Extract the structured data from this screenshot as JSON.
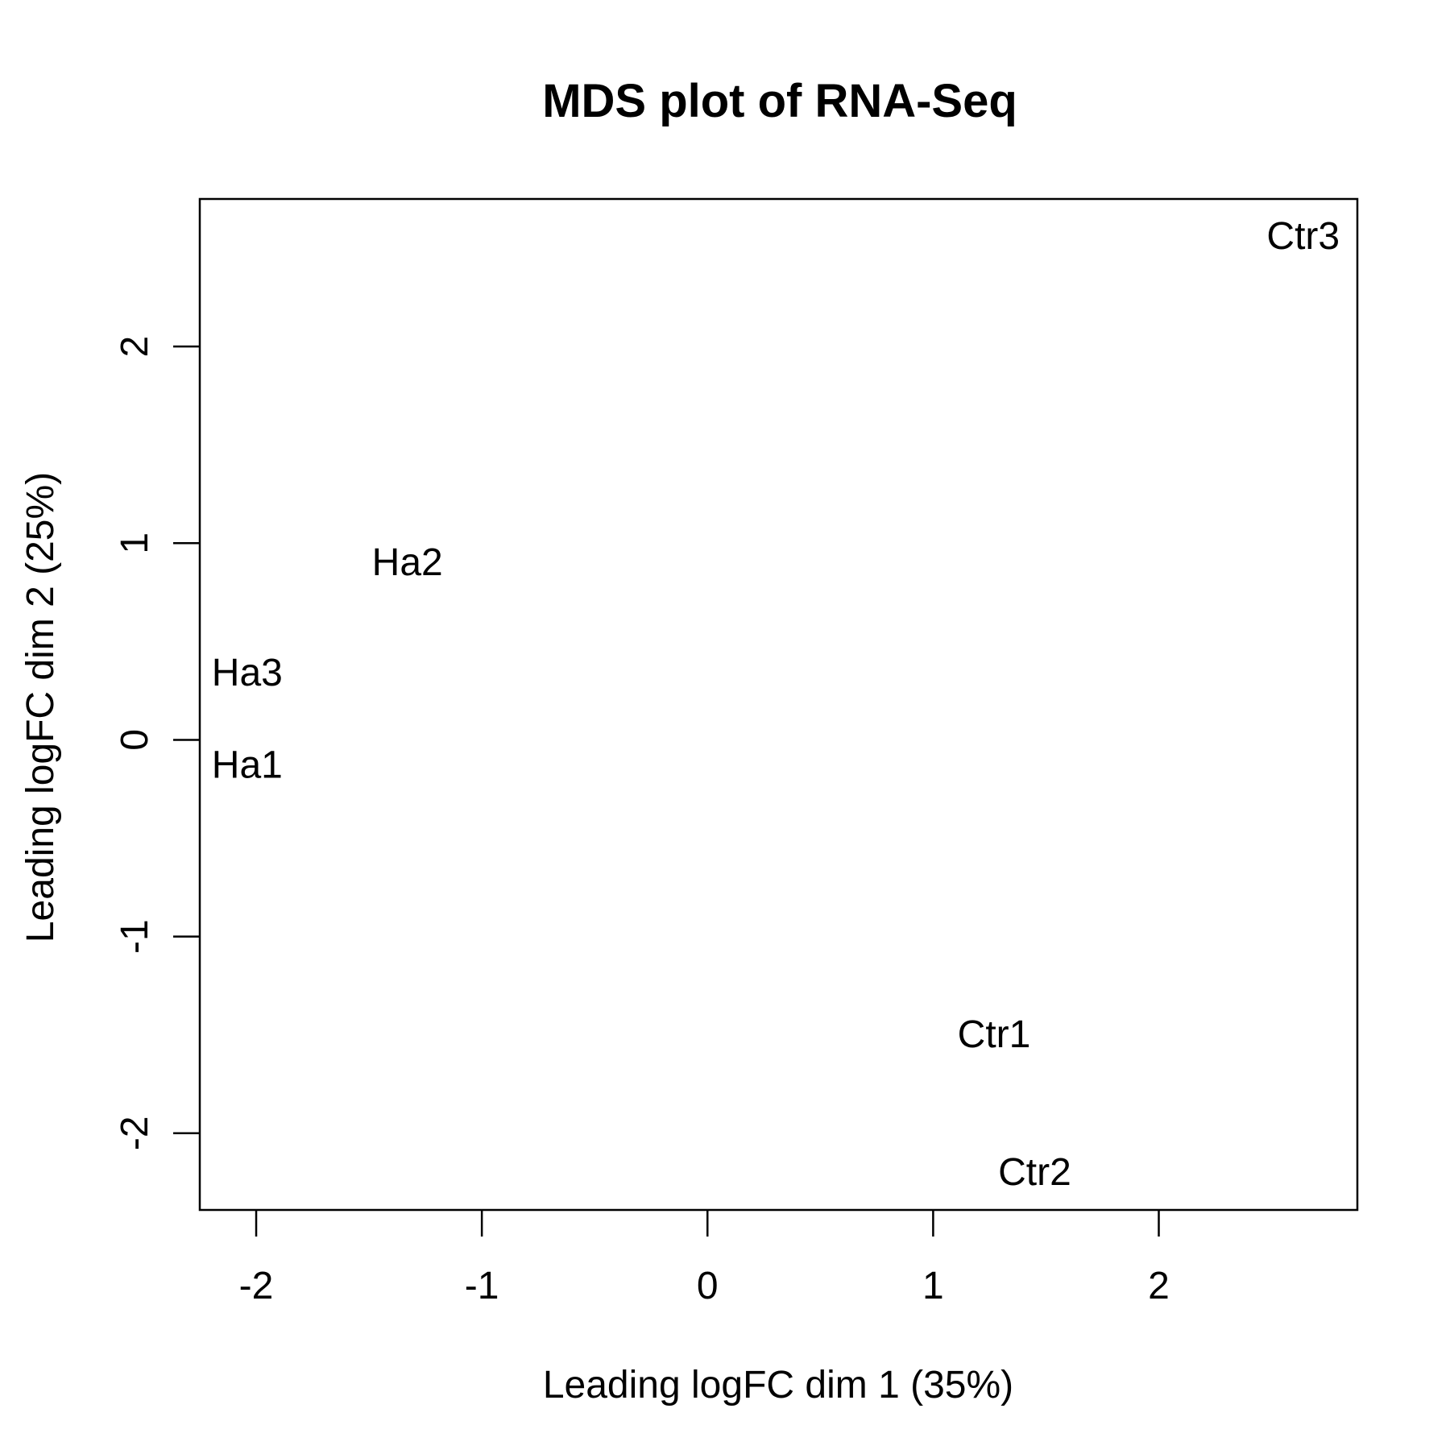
{
  "chart_data": {
    "type": "scatter",
    "title": "MDS plot of RNA-Seq",
    "xlabel": "Leading logFC dim 1 (35%)",
    "ylabel": "Leading logFC dim 2 (25%)",
    "xlim": [
      -2.25,
      2.88
    ],
    "ylim": [
      -2.39,
      2.75
    ],
    "xticks": [
      -2,
      -1,
      0,
      1,
      2
    ],
    "yticks": [
      -2,
      -1,
      0,
      1,
      2
    ],
    "grid": false,
    "points": [
      {
        "label": "Ha1",
        "x": -2.04,
        "y": -0.13
      },
      {
        "label": "Ha2",
        "x": -1.33,
        "y": 0.9
      },
      {
        "label": "Ha3",
        "x": -2.04,
        "y": 0.34
      },
      {
        "label": "Ctr1",
        "x": 1.27,
        "y": -1.5
      },
      {
        "label": "Ctr2",
        "x": 1.45,
        "y": -2.2
      },
      {
        "label": "Ctr3",
        "x": 2.64,
        "y": 2.56
      }
    ]
  }
}
